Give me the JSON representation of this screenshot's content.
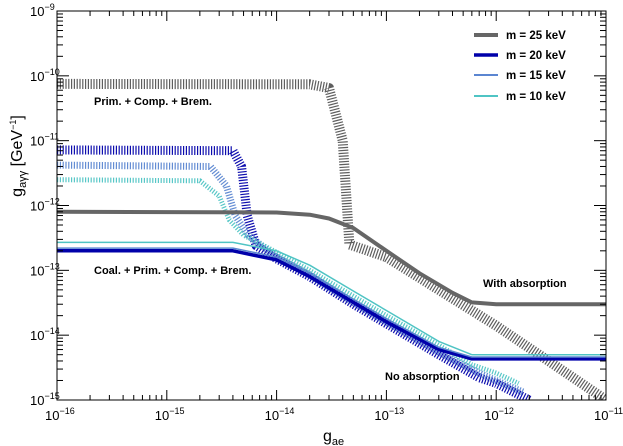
{
  "chart_data": {
    "type": "line",
    "xaxis": {
      "scale": "log",
      "range": [
        1e-16,
        1e-11
      ],
      "label_main": "g",
      "label_sub": "ae",
      "ticks": [
        {
          "value": 1e-16,
          "base": "10",
          "exp": "−16"
        },
        {
          "value": 1e-15,
          "base": "10",
          "exp": "−15"
        },
        {
          "value": 1e-14,
          "base": "10",
          "exp": "−14"
        },
        {
          "value": 1e-13,
          "base": "10",
          "exp": "−13"
        },
        {
          "value": 1e-12,
          "base": "10",
          "exp": "−12"
        },
        {
          "value": 1e-11,
          "base": "10",
          "exp": "−11"
        }
      ]
    },
    "yaxis": {
      "scale": "log",
      "range": [
        1e-15,
        1e-09
      ],
      "label_main": "g",
      "label_sub": "aγγ",
      "label_unit_pre": " [GeV",
      "label_unit_sup": "−1",
      "label_unit_post": "]",
      "ticks": [
        {
          "value": 1e-15,
          "base": "10",
          "exp": "−15"
        },
        {
          "value": 1e-14,
          "base": "10",
          "exp": "−14"
        },
        {
          "value": 1e-13,
          "base": "10",
          "exp": "−13"
        },
        {
          "value": 1e-12,
          "base": "10",
          "exp": "−12"
        },
        {
          "value": 1e-11,
          "base": "10",
          "exp": "−11"
        },
        {
          "value": 1e-10,
          "base": "10",
          "exp": "−10"
        },
        {
          "value": 1e-09,
          "base": "10",
          "exp": "−9"
        }
      ]
    },
    "grid": false,
    "legend_position": "top-right",
    "legend": [
      {
        "label": "m = 25 keV",
        "color": "#666666"
      },
      {
        "label": "m = 20 keV",
        "color": "#0000aa"
      },
      {
        "label": "m = 15 keV",
        "color": "#5b86d1"
      },
      {
        "label": "m = 10 keV",
        "color": "#4fc4c4"
      }
    ],
    "annotations": {
      "prim": "Prim. + Comp. + Brem.",
      "coal": "Coal. + Prim. + Comp. + Brem.",
      "with_abs": "With absorption",
      "no_abs": "No absorption"
    },
    "series": [
      {
        "name": "m = 25 keV",
        "style": "solid",
        "color": "#666666",
        "width": 4,
        "points": [
          [
            1e-16,
            8e-13
          ],
          [
            1e-14,
            7.8e-13
          ],
          [
            2e-14,
            7.2e-13
          ],
          [
            3e-14,
            6.3e-13
          ],
          [
            5e-14,
            4.5e-13
          ],
          [
            1e-13,
            2e-13
          ],
          [
            2e-13,
            9e-14
          ],
          [
            4e-13,
            4.5e-14
          ],
          [
            6e-13,
            3.2e-14
          ],
          [
            1e-12,
            3e-14
          ],
          [
            1e-11,
            3e-14
          ]
        ]
      },
      {
        "name": "m = 20 keV",
        "style": "solid",
        "color": "#0000aa",
        "width": 3.5,
        "points": [
          [
            1e-16,
            2e-13
          ],
          [
            4e-15,
            2e-13
          ],
          [
            1e-14,
            1.45e-13
          ],
          [
            2e-14,
            8e-14
          ],
          [
            5e-14,
            3.2e-14
          ],
          [
            1e-13,
            1.6e-14
          ],
          [
            3e-13,
            6e-15
          ],
          [
            6e-13,
            4.3e-15
          ],
          [
            1e-11,
            4.3e-15
          ]
        ]
      },
      {
        "name": "m = 15 keV",
        "style": "solid",
        "color": "#5b86d1",
        "width": 1.5,
        "points": [
          [
            1e-16,
            2.2e-13
          ],
          [
            4e-15,
            2.2e-13
          ],
          [
            1e-14,
            1.6e-13
          ],
          [
            2e-14,
            9e-14
          ],
          [
            5e-14,
            3.6e-14
          ],
          [
            1e-13,
            1.8e-14
          ],
          [
            3e-13,
            6.5e-15
          ],
          [
            6e-13,
            4.6e-15
          ],
          [
            1e-11,
            4.6e-15
          ]
        ]
      },
      {
        "name": "m = 10 keV",
        "style": "solid",
        "color": "#4fc4c4",
        "width": 1.5,
        "points": [
          [
            1e-16,
            2.7e-13
          ],
          [
            4e-15,
            2.7e-13
          ],
          [
            1e-14,
            2e-13
          ],
          [
            2e-14,
            1.2e-13
          ],
          [
            5e-14,
            4.8e-14
          ],
          [
            1e-13,
            2.4e-14
          ],
          [
            3e-13,
            8e-15
          ],
          [
            6e-13,
            5e-15
          ],
          [
            1e-11,
            5e-15
          ]
        ]
      },
      {
        "name": "m = 25 keV",
        "style": "hatched",
        "color": "#555555",
        "width": 10,
        "points": [
          [
            1e-16,
            7.5e-11
          ],
          [
            2e-14,
            7.4e-11
          ],
          [
            3e-14,
            6.5e-11
          ],
          [
            4e-14,
            1e-11
          ],
          [
            4.6e-14,
            2.5e-13
          ],
          [
            1e-13,
            1.6e-13
          ],
          [
            3e-13,
            5e-14
          ],
          [
            1e-12,
            1.4e-14
          ],
          [
            3e-12,
            4e-15
          ],
          [
            1e-11,
            1e-15
          ]
        ]
      },
      {
        "name": "m = 20 keV",
        "style": "hatched",
        "color": "#0000aa",
        "width": 9,
        "points": [
          [
            1e-16,
            7.2e-12
          ],
          [
            4e-15,
            7e-12
          ],
          [
            4.8e-15,
            4e-12
          ],
          [
            5.4e-15,
            7e-13
          ],
          [
            6.5e-15,
            2.4e-13
          ],
          [
            1e-14,
            1.5e-13
          ],
          [
            2e-14,
            8e-14
          ],
          [
            5e-14,
            3e-14
          ],
          [
            1e-13,
            1.5e-14
          ],
          [
            3e-13,
            5e-15
          ],
          [
            7e-13,
            2.2e-15
          ],
          [
            1e-12,
            1.8e-15
          ],
          [
            2e-12,
            1e-15
          ]
        ]
      },
      {
        "name": "m = 15 keV",
        "style": "hatched",
        "color": "#5b86d1",
        "width": 7,
        "points": [
          [
            1e-16,
            4.2e-12
          ],
          [
            2.5e-15,
            4e-12
          ],
          [
            3.5e-15,
            2e-12
          ],
          [
            4.2e-15,
            7e-13
          ],
          [
            5.5e-15,
            3.5e-13
          ],
          [
            1e-14,
            1.6e-13
          ],
          [
            2e-14,
            8.5e-14
          ],
          [
            5e-14,
            3.2e-14
          ],
          [
            1e-13,
            1.6e-14
          ],
          [
            3e-13,
            5.5e-15
          ],
          [
            7e-13,
            2.6e-15
          ],
          [
            1e-12,
            2e-15
          ],
          [
            1.8e-12,
            1.3e-15
          ]
        ]
      },
      {
        "name": "m = 10 keV",
        "style": "hatched",
        "color": "#4fc4c4",
        "width": 5,
        "points": [
          [
            1e-16,
            2.5e-12
          ],
          [
            2e-15,
            2.4e-12
          ],
          [
            3e-15,
            1.4e-12
          ],
          [
            3.7e-15,
            6e-13
          ],
          [
            5e-15,
            3.5e-13
          ],
          [
            1e-14,
            1.9e-13
          ],
          [
            2e-14,
            1e-13
          ],
          [
            5e-14,
            4e-14
          ],
          [
            1e-13,
            2e-14
          ],
          [
            3e-13,
            7e-15
          ],
          [
            6e-13,
            3.5e-15
          ],
          [
            1e-12,
            2.6e-15
          ],
          [
            1.6e-12,
            1.8e-15
          ]
        ]
      }
    ]
  }
}
